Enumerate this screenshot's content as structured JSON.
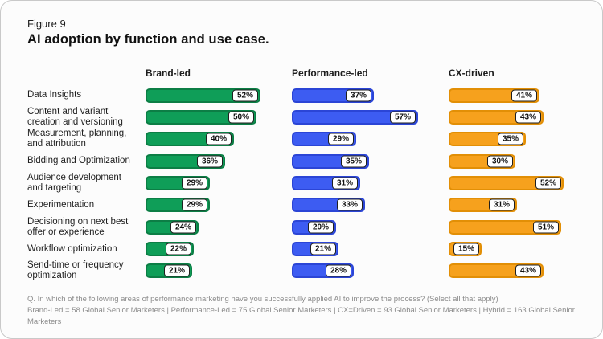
{
  "figure": {
    "label": "Figure 9",
    "title": "AI adoption by function and use case."
  },
  "chart_data": {
    "type": "bar",
    "orientation": "horizontal",
    "grid": false,
    "legend_position": "column-headers",
    "value_suffix": "%",
    "xlim": [
      0,
      60
    ],
    "categories": [
      "Data Insights",
      "Content and variant creation and versioning",
      "Measurement, planning, and attribution",
      "Bidding and Optimization",
      "Audience development and targeting",
      "Experimentation",
      "Decisioning on next best offer or experience",
      "Workflow optimization",
      "Send-time or frequency optimization"
    ],
    "series": [
      {
        "name": "Brand-led",
        "color": "#0f9e58",
        "border_color": "#0c7e45",
        "values": [
          52,
          50,
          40,
          36,
          29,
          29,
          24,
          22,
          21
        ]
      },
      {
        "name": "Performance-led",
        "color": "#3d5cf2",
        "border_color": "#2b45d6",
        "values": [
          37,
          57,
          29,
          35,
          31,
          33,
          20,
          21,
          28
        ]
      },
      {
        "name": "CX-driven",
        "color": "#f6a11d",
        "border_color": "#e28f06",
        "values": [
          41,
          43,
          35,
          30,
          52,
          31,
          51,
          15,
          43
        ]
      }
    ]
  },
  "footer": {
    "question": "Q. In which of the following areas of performance marketing have you successfully applied AI to improve the process? (Select all that apply)",
    "sample": "Brand-Led = 58 Global Senior Marketers | Performance-Led = 75 Global Senior Marketers | CX=Driven = 93 Global Senior Marketers | Hybrid = 163 Global Senior Marketers"
  },
  "colors": {
    "card_background": "#fcfcfc",
    "value_chip_background": "#ffffff",
    "value_chip_border": "#1f1f1f",
    "text_dark": "#1c1c1c",
    "text_muted": "#8c8c8c"
  }
}
